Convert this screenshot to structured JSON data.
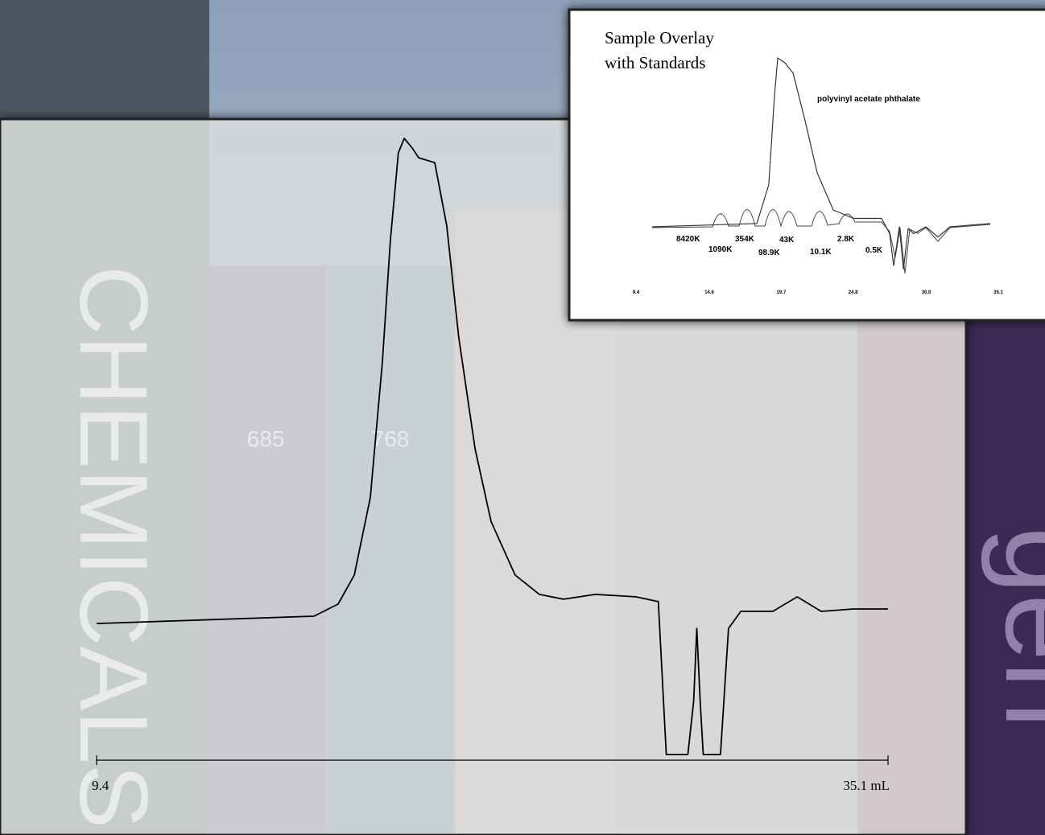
{
  "chart_data": [
    {
      "type": "line",
      "x": [
        9.4,
        16.46,
        17.24,
        17.77,
        18.29,
        18.68,
        18.94,
        19.2,
        19.39,
        19.65,
        19.86,
        20.38,
        20.77,
        21.16,
        21.69,
        22.21,
        22.99,
        23.78,
        24.56,
        25.6,
        26.91,
        27.64,
        27.9,
        28.6,
        28.79,
        28.89,
        29.0,
        29.1,
        29.66,
        29.92,
        30.32,
        31.36,
        32.15,
        32.93,
        33.98,
        35.1
      ],
      "values": [
        0,
        1.5,
        4,
        10,
        26,
        54,
        79,
        97,
        100,
        98,
        96,
        95,
        82,
        59,
        36,
        21,
        10,
        6,
        5,
        6,
        5.5,
        4.5,
        -27,
        -27,
        -16,
        -1,
        -16,
        -27,
        -27,
        -1,
        2.5,
        2.5,
        5.5,
        2.5,
        3,
        3
      ],
      "color": "#000000",
      "xlim": [
        9.4,
        35.1
      ],
      "xticks": [
        9.4,
        {
          "value": 35.1,
          "label": "35.1 mL"
        }
      ],
      "ylim": [
        -30,
        100
      ]
    },
    {
      "type": "line",
      "title": [
        "Sample Overlay",
        "with Standards"
      ],
      "annotation": "polyvinyl acetate phthalate",
      "peak_labels": [
        "8420K",
        "1090K",
        "354K",
        "98.9K",
        "43K",
        "10.1K",
        "2.8K",
        "0.5K"
      ],
      "x": [
        10.54,
        17.97,
        18.82,
        19.22,
        19.45,
        19.97,
        20.54,
        21.39,
        22.25,
        23.39,
        24.82,
        26.82,
        27.39,
        27.68,
        28.08,
        28.37,
        28.71,
        29.1,
        29.96,
        30.82,
        31.67,
        34.53
      ],
      "values": [
        0,
        2,
        25,
        77,
        100,
        97,
        91,
        63,
        32,
        10,
        5,
        5,
        -4,
        -23,
        0,
        -25,
        -1,
        -4,
        0,
        -6,
        0,
        2
      ],
      "color": "#333333",
      "xlim": [
        9.4,
        35.1
      ],
      "xticks": [
        9.4,
        14.6,
        19.7,
        24.8,
        {
          "value": 30.0,
          "label": "30.0"
        },
        35.1
      ],
      "ylim": [
        -30,
        100
      ]
    }
  ],
  "background": {
    "texts": [
      "CHEMICALS",
      "685",
      "768",
      "gen"
    ]
  }
}
